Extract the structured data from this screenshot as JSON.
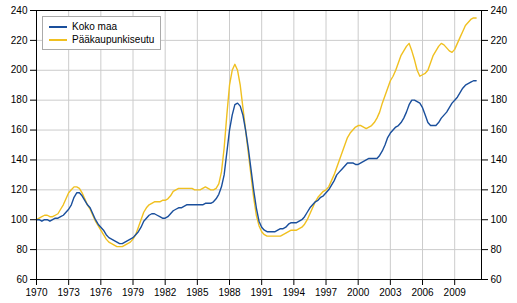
{
  "chart_data": {
    "type": "line",
    "x": [
      1970,
      1970.25,
      1970.5,
      1970.75,
      1971,
      1971.25,
      1971.5,
      1971.75,
      1972,
      1972.25,
      1972.5,
      1972.75,
      1973,
      1973.25,
      1973.5,
      1973.75,
      1974,
      1974.25,
      1974.5,
      1974.75,
      1975,
      1975.25,
      1975.5,
      1975.75,
      1976,
      1976.25,
      1976.5,
      1976.75,
      1977,
      1977.25,
      1977.5,
      1977.75,
      1978,
      1978.25,
      1978.5,
      1978.75,
      1979,
      1979.25,
      1979.5,
      1979.75,
      1980,
      1980.25,
      1980.5,
      1980.75,
      1981,
      1981.25,
      1981.5,
      1981.75,
      1982,
      1982.25,
      1982.5,
      1982.75,
      1983,
      1983.25,
      1983.5,
      1983.75,
      1984,
      1984.25,
      1984.5,
      1984.75,
      1985,
      1985.25,
      1985.5,
      1985.75,
      1986,
      1986.25,
      1986.5,
      1986.75,
      1987,
      1987.25,
      1987.5,
      1987.75,
      1988,
      1988.25,
      1988.5,
      1988.75,
      1989,
      1989.25,
      1989.5,
      1989.75,
      1990,
      1990.25,
      1990.5,
      1990.75,
      1991,
      1991.25,
      1991.5,
      1991.75,
      1992,
      1992.25,
      1992.5,
      1992.75,
      1993,
      1993.25,
      1993.5,
      1993.75,
      1994,
      1994.25,
      1994.5,
      1994.75,
      1995,
      1995.25,
      1995.5,
      1995.75,
      1996,
      1996.25,
      1996.5,
      1996.75,
      1997,
      1997.25,
      1997.5,
      1997.75,
      1998,
      1998.25,
      1998.5,
      1998.75,
      1999,
      1999.25,
      1999.5,
      1999.75,
      2000,
      2000.25,
      2000.5,
      2000.75,
      2001,
      2001.25,
      2001.5,
      2001.75,
      2002,
      2002.25,
      2002.5,
      2002.75,
      2003,
      2003.25,
      2003.5,
      2003.75,
      2004,
      2004.25,
      2004.5,
      2004.75,
      2005,
      2005.25,
      2005.5,
      2005.75,
      2006,
      2006.25,
      2006.5,
      2006.75,
      2007,
      2007.25,
      2007.5,
      2007.75,
      2008,
      2008.25,
      2008.5,
      2008.75,
      2009,
      2009.25,
      2009.5,
      2009.75,
      2010,
      2010.25,
      2010.5,
      2010.75,
      2011
    ],
    "series": [
      {
        "name": "Koko maa",
        "color": "#1a4f9c",
        "values": [
          100,
          100,
          99,
          100,
          100,
          99,
          100,
          101,
          101,
          102,
          103,
          105,
          107,
          110,
          115,
          118,
          118,
          116,
          113,
          110,
          108,
          104,
          100,
          97,
          95,
          93,
          90,
          88,
          87,
          86,
          85,
          84,
          84,
          85,
          86,
          87,
          88,
          90,
          92,
          95,
          99,
          101,
          103,
          104,
          104,
          103,
          102,
          101,
          101,
          102,
          104,
          106,
          107,
          108,
          108,
          109,
          110,
          110,
          110,
          110,
          110,
          110,
          110,
          111,
          111,
          111,
          112,
          114,
          117,
          122,
          130,
          145,
          160,
          170,
          177,
          178,
          176,
          170,
          160,
          148,
          134,
          120,
          108,
          99,
          95,
          93,
          92,
          92,
          92,
          92,
          93,
          94,
          94,
          95,
          97,
          98,
          98,
          98,
          99,
          100,
          102,
          105,
          108,
          110,
          112,
          113,
          115,
          116,
          118,
          120,
          123,
          126,
          130,
          132,
          134,
          136,
          138,
          138,
          138,
          137,
          137,
          138,
          139,
          140,
          141,
          141,
          141,
          141,
          143,
          146,
          150,
          155,
          158,
          160,
          162,
          163,
          165,
          168,
          172,
          177,
          180,
          180,
          179,
          178,
          175,
          170,
          165,
          163,
          163,
          163,
          165,
          168,
          170,
          172,
          175,
          178,
          180,
          182,
          185,
          188,
          190,
          191,
          192,
          193,
          193
        ]
      },
      {
        "name": "Pääkaupunkiseutu",
        "color": "#f0c020",
        "values": [
          100,
          101,
          102,
          103,
          103,
          102,
          102,
          103,
          104,
          107,
          110,
          114,
          118,
          120,
          122,
          122,
          121,
          118,
          114,
          110,
          107,
          103,
          99,
          96,
          93,
          90,
          87,
          85,
          84,
          83,
          82,
          82,
          82,
          83,
          84,
          85,
          87,
          90,
          95,
          100,
          105,
          108,
          110,
          111,
          112,
          112,
          112,
          113,
          113,
          114,
          116,
          119,
          120,
          121,
          121,
          121,
          121,
          121,
          121,
          120,
          120,
          120,
          121,
          122,
          121,
          120,
          120,
          121,
          124,
          132,
          148,
          170,
          190,
          200,
          204,
          200,
          190,
          175,
          160,
          145,
          130,
          115,
          103,
          96,
          92,
          90,
          89,
          89,
          89,
          89,
          89,
          89,
          90,
          91,
          92,
          93,
          93,
          93,
          94,
          95,
          97,
          100,
          104,
          108,
          112,
          115,
          117,
          119,
          120,
          122,
          126,
          130,
          135,
          140,
          145,
          150,
          155,
          158,
          160,
          162,
          163,
          163,
          162,
          161,
          162,
          163,
          165,
          168,
          172,
          178,
          183,
          188,
          193,
          196,
          200,
          205,
          210,
          213,
          216,
          218,
          213,
          207,
          200,
          196,
          197,
          198,
          200,
          205,
          210,
          213,
          216,
          218,
          217,
          215,
          213,
          212,
          214,
          218,
          222,
          226,
          230,
          232,
          234,
          235,
          235
        ]
      }
    ],
    "xlim": [
      1970,
      2011.5
    ],
    "ylim": [
      60,
      240
    ],
    "xticks": [
      1970,
      1973,
      1976,
      1979,
      1982,
      1985,
      1988,
      1991,
      1994,
      1997,
      2000,
      2003,
      2006,
      2009
    ],
    "yticks": [
      60,
      80,
      100,
      120,
      140,
      160,
      180,
      200,
      220,
      240
    ],
    "grid": true,
    "legend": "upper left"
  }
}
